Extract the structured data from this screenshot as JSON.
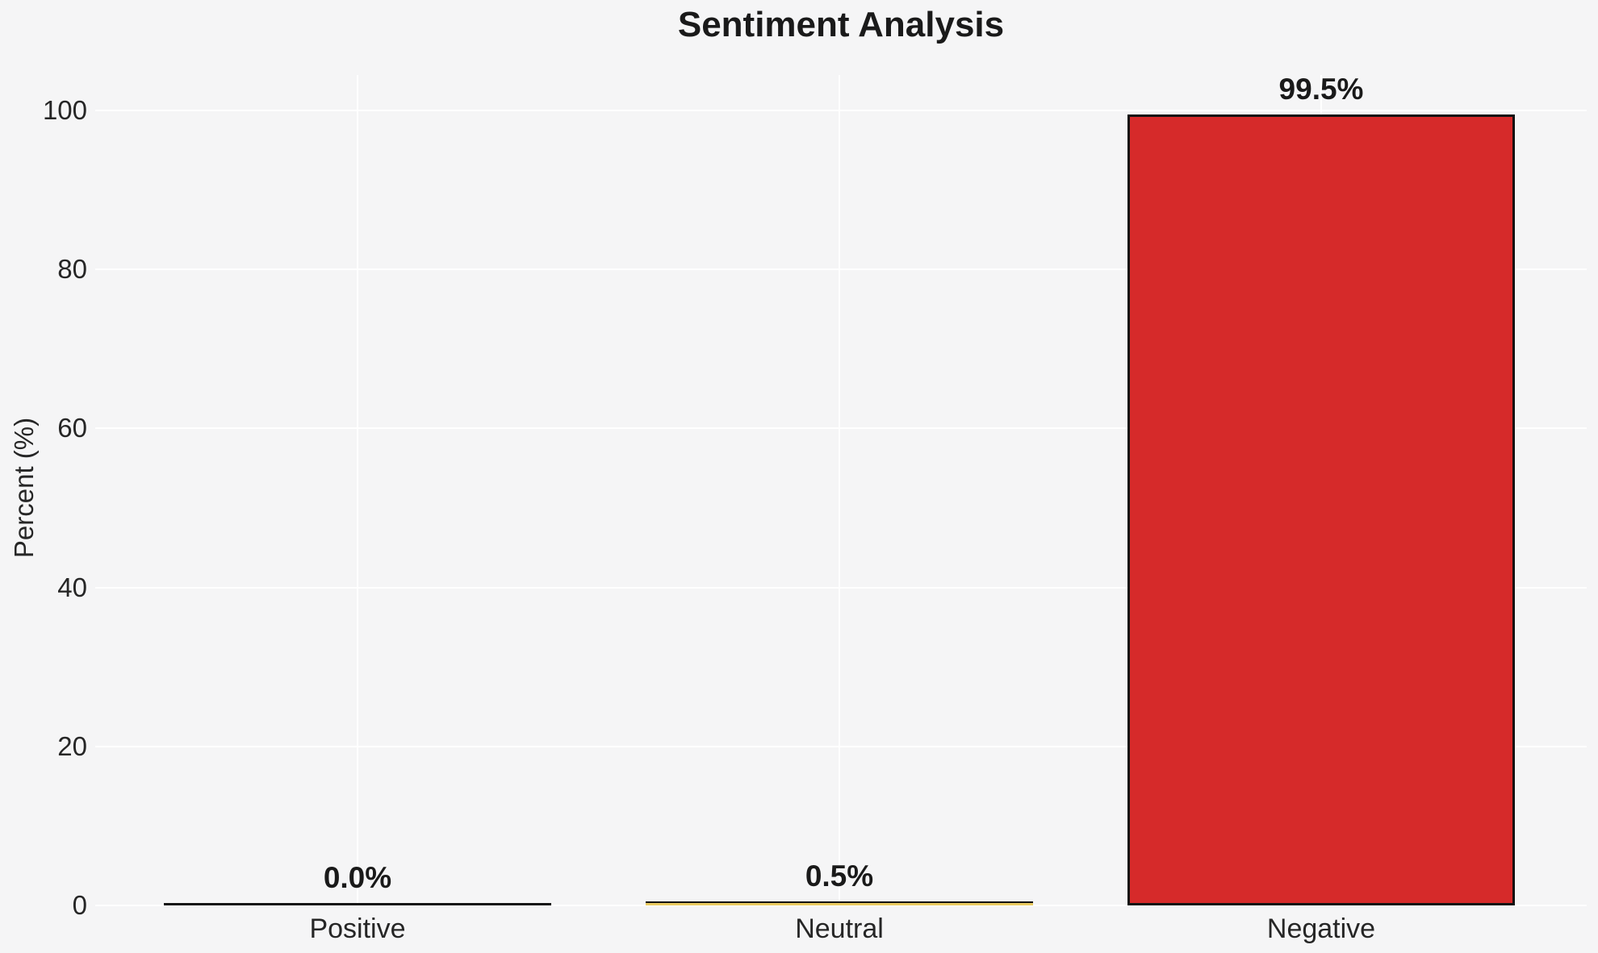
{
  "title": "Sentiment Analysis",
  "colors": {
    "background": "#f5f5f6",
    "grid": "#ffffff",
    "text": "#262626",
    "title_text": "#1a1a1a",
    "bar_edge": "#111111"
  },
  "y_axis": {
    "label": "Percent (%)",
    "tick_labels": [
      "0",
      "20",
      "40",
      "60",
      "80",
      "100"
    ]
  },
  "chart_data": {
    "type": "bar",
    "title": "Sentiment Analysis",
    "xlabel": "",
    "ylabel": "Percent (%)",
    "categories": [
      "Positive",
      "Neutral",
      "Negative"
    ],
    "values": [
      0.0,
      0.5,
      99.5
    ],
    "value_labels": [
      "0.0%",
      "0.5%",
      "99.5%"
    ],
    "bar_colors": [
      null,
      "#e8c95f",
      "#d62a2a"
    ],
    "bar_edge_color": "#111111",
    "ylim": [
      0,
      105
    ],
    "yticks": [
      0,
      20,
      40,
      60,
      80,
      100
    ],
    "grid": true,
    "legend": false
  }
}
